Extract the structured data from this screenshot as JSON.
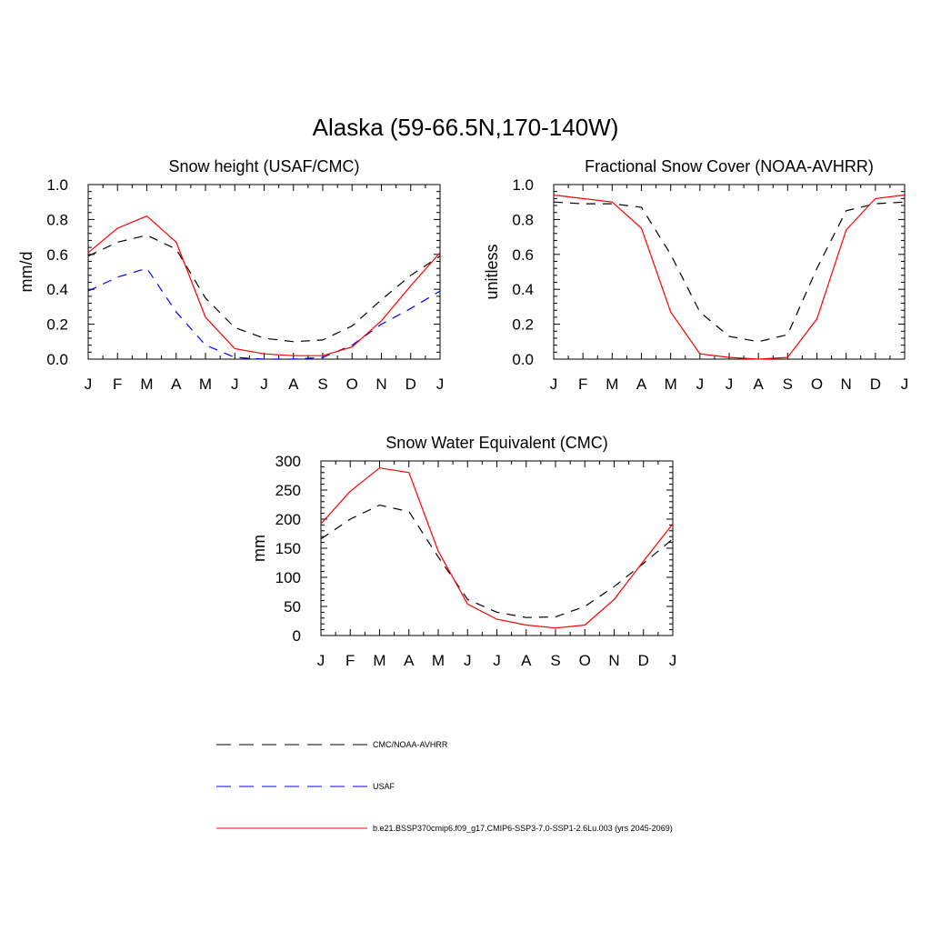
{
  "figure": {
    "title": "Alaska (59-66.5N,170-140W)"
  },
  "colors": {
    "obs": "#000000",
    "usaf": "#0000ff",
    "model": "#ff0000"
  },
  "legend": [
    {
      "key": "obs",
      "label": "CMC/NOAA-AVHRR",
      "dash": "dash"
    },
    {
      "key": "usaf",
      "label": "USAF",
      "dash": "dash"
    },
    {
      "key": "model",
      "label": "b.e21.BSSP370cmip6.f09_g17.CMIP6-SSP3-7.0-SSP1-2.6Lu.003 (yrs 2045-2069)",
      "dash": "solid"
    }
  ],
  "chart_data": [
    {
      "type": "line",
      "title": "Snow height (USAF/CMC)",
      "xlabel": "",
      "ylabel": "mm/d",
      "categories": [
        "J",
        "F",
        "M",
        "A",
        "M",
        "J",
        "J",
        "A",
        "S",
        "O",
        "N",
        "D",
        "J"
      ],
      "ylim": [
        0,
        1.0
      ],
      "yticks": [
        "0.0",
        "0.2",
        "0.4",
        "0.6",
        "0.8",
        "1.0"
      ],
      "ytick_values": [
        0,
        0.2,
        0.4,
        0.6,
        0.8,
        1.0
      ],
      "grid": false,
      "series": [
        {
          "key": "obs",
          "values": [
            0.59,
            0.67,
            0.71,
            0.63,
            0.35,
            0.18,
            0.12,
            0.1,
            0.11,
            0.19,
            0.34,
            0.48,
            0.59
          ]
        },
        {
          "key": "usaf",
          "values": [
            0.39,
            0.47,
            0.52,
            0.27,
            0.08,
            0.01,
            0.0,
            0.0,
            0.01,
            0.08,
            0.2,
            0.29,
            0.39
          ]
        },
        {
          "key": "model",
          "values": [
            0.61,
            0.75,
            0.82,
            0.67,
            0.24,
            0.06,
            0.03,
            0.02,
            0.02,
            0.07,
            0.22,
            0.42,
            0.61
          ]
        }
      ]
    },
    {
      "type": "line",
      "title": "Fractional Snow Cover (NOAA-AVHRR)",
      "xlabel": "",
      "ylabel": "unitless",
      "categories": [
        "J",
        "F",
        "M",
        "A",
        "M",
        "J",
        "J",
        "A",
        "S",
        "O",
        "N",
        "D",
        "J"
      ],
      "ylim": [
        0,
        1.0
      ],
      "yticks": [
        "0.0",
        "0.2",
        "0.4",
        "0.6",
        "0.8",
        "1.0"
      ],
      "ytick_values": [
        0,
        0.2,
        0.4,
        0.6,
        0.8,
        1.0
      ],
      "grid": false,
      "series": [
        {
          "key": "obs",
          "values": [
            0.9,
            0.89,
            0.89,
            0.87,
            0.6,
            0.27,
            0.13,
            0.1,
            0.14,
            0.52,
            0.85,
            0.89,
            0.9
          ]
        },
        {
          "key": "model",
          "values": [
            0.94,
            0.92,
            0.9,
            0.75,
            0.27,
            0.03,
            0.01,
            0.0,
            0.01,
            0.23,
            0.74,
            0.92,
            0.94
          ]
        }
      ]
    },
    {
      "type": "line",
      "title": "Snow Water Equivalent (CMC)",
      "xlabel": "",
      "ylabel": "mm",
      "categories": [
        "J",
        "F",
        "M",
        "A",
        "M",
        "J",
        "J",
        "A",
        "S",
        "O",
        "N",
        "D",
        "J"
      ],
      "ylim": [
        0,
        300
      ],
      "yticks": [
        "0",
        "50",
        "100",
        "150",
        "200",
        "250",
        "300"
      ],
      "ytick_values": [
        0,
        50,
        100,
        150,
        200,
        250,
        300
      ],
      "grid": false,
      "series": [
        {
          "key": "obs",
          "values": [
            166,
            200,
            224,
            213,
            135,
            62,
            40,
            31,
            32,
            50,
            84,
            124,
            166
          ]
        },
        {
          "key": "model",
          "values": [
            192,
            248,
            288,
            280,
            145,
            54,
            28,
            18,
            13,
            18,
            62,
            128,
            192
          ]
        }
      ]
    }
  ]
}
